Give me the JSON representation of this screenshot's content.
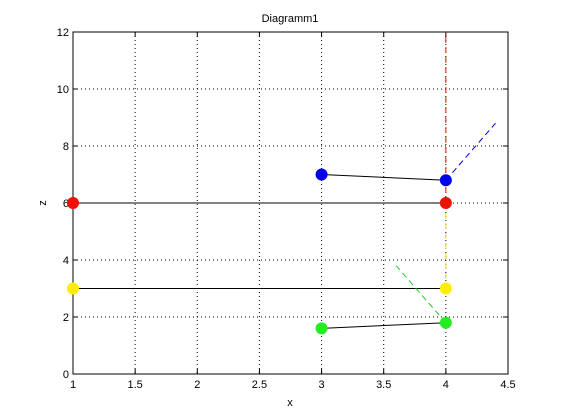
{
  "chart_data": {
    "type": "scatter",
    "title": "Diagramm1",
    "xlabel": "x",
    "ylabel": "z",
    "xlim": [
      1,
      4.5
    ],
    "ylim": [
      0,
      12
    ],
    "grid": true,
    "xticks": [
      1,
      1.5,
      2,
      2.5,
      3,
      3.5,
      4,
      4.5
    ],
    "yticks": [
      0,
      2,
      4,
      6,
      8,
      10,
      12
    ],
    "xtick_labels": [
      "1",
      "1.5",
      "2",
      "2.5",
      "3",
      "3.5",
      "4",
      "4.5"
    ],
    "ytick_labels": [
      "0",
      "2",
      "4",
      "6",
      "8",
      "10",
      "12"
    ],
    "solid_segments": [
      {
        "color": "#000000",
        "points": [
          [
            3,
            7.0
          ],
          [
            4,
            6.8
          ]
        ]
      },
      {
        "color": "#000000",
        "points": [
          [
            1,
            6.0
          ],
          [
            4,
            6.0
          ]
        ]
      },
      {
        "color": "#000000",
        "points": [
          [
            1,
            3.0
          ],
          [
            4,
            3.0
          ]
        ]
      },
      {
        "color": "#000000",
        "points": [
          [
            3,
            1.6
          ],
          [
            4,
            1.8
          ]
        ]
      }
    ],
    "dashed_segments": [
      {
        "color": "#0000cc",
        "points": [
          [
            4,
            6.8
          ],
          [
            4.4,
            8.8
          ]
        ]
      },
      {
        "color": "#cc2200",
        "points": [
          [
            4,
            6.0
          ],
          [
            4,
            12.0
          ]
        ]
      },
      {
        "color": "#eedd00",
        "points": [
          [
            4,
            6.0
          ],
          [
            4,
            3.0
          ]
        ]
      },
      {
        "color": "#22cc22",
        "points": [
          [
            4,
            1.8
          ],
          [
            3.6,
            3.8
          ]
        ]
      }
    ],
    "markers": [
      {
        "color": "#0000ee",
        "x": 3,
        "y": 7.0
      },
      {
        "color": "#0000ee",
        "x": 4,
        "y": 6.8
      },
      {
        "color": "#ee1100",
        "x": 1,
        "y": 6.0
      },
      {
        "color": "#ee1100",
        "x": 4,
        "y": 6.0
      },
      {
        "color": "#ffee00",
        "x": 1,
        "y": 3.0
      },
      {
        "color": "#ffee00",
        "x": 4,
        "y": 3.0
      },
      {
        "color": "#22ee22",
        "x": 3,
        "y": 1.6
      },
      {
        "color": "#22ee22",
        "x": 4,
        "y": 1.8
      }
    ]
  }
}
